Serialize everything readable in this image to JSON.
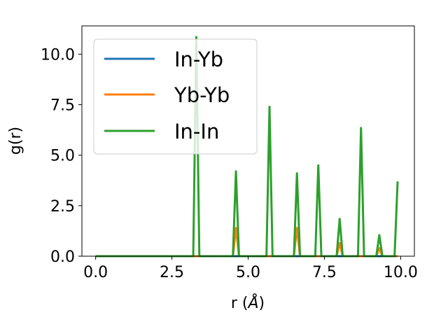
{
  "chart_data": {
    "type": "line",
    "xlabel_main": "r (",
    "xlabel_unit": "Å",
    "xlabel_close": ")",
    "ylabel": "g(r)",
    "xlim": [
      -0.45,
      10.45
    ],
    "ylim": [
      0,
      11.4
    ],
    "xticks": [
      0.0,
      2.5,
      5.0,
      7.5,
      10.0
    ],
    "xtick_labels": [
      "0.0",
      "2.5",
      "5.0",
      "7.5",
      "10.0"
    ],
    "yticks": [
      0.0,
      2.5,
      5.0,
      7.5,
      10.0
    ],
    "ytick_labels": [
      "0.0",
      "2.5",
      "5.0",
      "7.5",
      "10.0"
    ],
    "grid": false,
    "legend_position": "upper-left",
    "series": [
      {
        "name": "In-Yb",
        "color": "#1f77b4",
        "x": [
          0.0,
          3.2,
          3.3,
          3.4,
          4.5,
          4.6,
          4.7,
          5.6,
          5.7,
          5.8,
          6.5,
          6.6,
          6.7,
          7.2,
          7.3,
          7.4,
          7.9,
          8.0,
          8.1,
          8.6,
          8.7,
          8.8,
          9.2,
          9.3,
          9.4,
          9.9
        ],
        "y": [
          0.0,
          0.0,
          0.0,
          0.0,
          0.0,
          0.0,
          0.0,
          0.0,
          0.0,
          0.0,
          0.0,
          0.0,
          0.0,
          0.0,
          0.0,
          0.0,
          0.0,
          0.0,
          0.0,
          0.0,
          0.0,
          0.0,
          0.0,
          0.0,
          0.0,
          0.0
        ]
      },
      {
        "name": "Yb-Yb",
        "color": "#ff7f0e",
        "x": [
          0.0,
          4.5,
          4.6,
          4.7,
          6.5,
          6.6,
          6.7,
          7.9,
          8.0,
          8.1,
          9.2,
          9.3,
          9.4,
          9.9
        ],
        "y": [
          0.0,
          0.0,
          1.4,
          0.0,
          0.0,
          1.4,
          0.0,
          0.0,
          0.65,
          0.0,
          0.0,
          0.4,
          0.0,
          0.0
        ]
      },
      {
        "name": "In-In",
        "color": "#2ca02c",
        "x": [
          0.0,
          3.2,
          3.3,
          3.4,
          4.5,
          4.6,
          4.7,
          5.6,
          5.7,
          5.8,
          6.5,
          6.6,
          6.7,
          7.2,
          7.3,
          7.4,
          7.9,
          8.0,
          8.1,
          8.6,
          8.7,
          8.8,
          9.2,
          9.3,
          9.4,
          9.8,
          9.9
        ],
        "y": [
          0.0,
          0.0,
          10.85,
          0.0,
          0.0,
          4.2,
          0.0,
          0.0,
          7.4,
          0.0,
          0.0,
          4.1,
          0.0,
          0.0,
          4.5,
          0.0,
          0.0,
          1.85,
          0.0,
          0.0,
          6.35,
          0.0,
          0.0,
          1.05,
          0.0,
          0.0,
          3.7
        ]
      }
    ]
  }
}
